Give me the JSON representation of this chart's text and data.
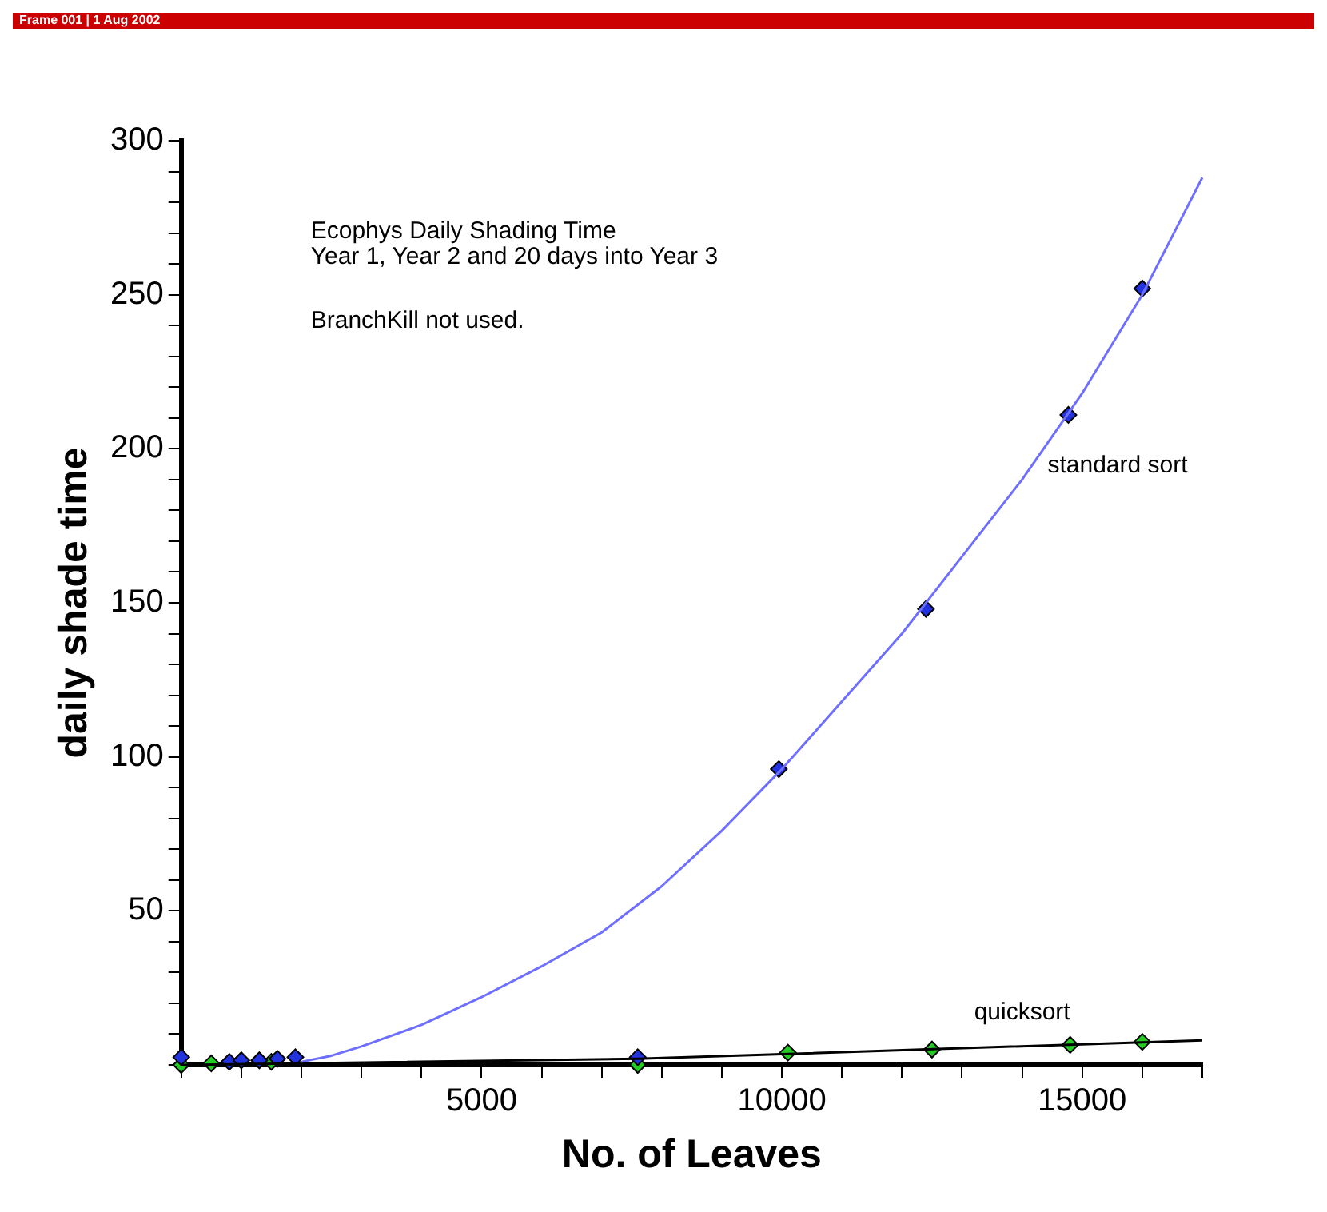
{
  "chart_data": {
    "type": "scatter",
    "title": "Ecophys Daily Shading Time",
    "subtitle": "Frame 001 | 1 Aug 2002",
    "xlabel": "No. of Leaves",
    "ylabel": "daily shade time",
    "annotations": [
      "Year 1, Year 2 and 20 days into Year 3",
      "BranchKill not used."
    ],
    "series": [
      {
        "type": "line",
        "color": "#6f6fff",
        "marker": "none",
        "x": [
          2000,
          2500,
          3000,
          4000,
          5000,
          6000,
          7000,
          8000,
          9000,
          10000,
          11000,
          12000,
          13000,
          14000,
          15000,
          16000,
          17000
        ],
        "values": [
          1,
          3,
          6,
          13,
          22,
          32,
          43,
          58,
          76,
          96,
          118,
          140,
          165,
          190,
          218,
          250,
          288
        ]
      },
      {
        "type": "line",
        "color": "#000000",
        "marker": "none",
        "x": [
          0,
          7600,
          10000,
          17000
        ],
        "values": [
          0,
          2,
          3.5,
          8
        ]
      },
      {
        "type": "scatter",
        "name": "standard sort",
        "color": "#2233dd",
        "marker": "diamond",
        "x": [
          0,
          500,
          800,
          1000,
          1300,
          1600,
          1900,
          7600,
          9950,
          12400,
          14770,
          16000
        ],
        "values": [
          2.5,
          null,
          1,
          1.5,
          1.5,
          2,
          2.5,
          2.5,
          96,
          148,
          211,
          252
        ]
      },
      {
        "type": "scatter",
        "name": "quicksort",
        "color": "#22cc22",
        "marker": "diamond",
        "x": [
          0,
          500,
          1000,
          1500,
          1900,
          7600,
          10100,
          12500,
          14800,
          16000
        ],
        "values": [
          0,
          0.5,
          null,
          1,
          null,
          0,
          4,
          5,
          6.5,
          7.5
        ]
      }
    ],
    "xlim": [
      0,
      17000
    ],
    "xticks": [
      {
        "value": 0,
        "label": null
      },
      {
        "value": 1000,
        "label": null
      },
      {
        "value": 2000,
        "label": null
      },
      {
        "value": 3000,
        "label": null
      },
      {
        "value": 4000,
        "label": null
      },
      5000,
      {
        "value": 6000,
        "label": null
      },
      {
        "value": 7000,
        "label": null
      },
      {
        "value": 8000,
        "label": null
      },
      {
        "value": 9000,
        "label": null
      },
      10000,
      {
        "value": 11000,
        "label": null
      },
      {
        "value": 12000,
        "label": null
      },
      {
        "value": 13000,
        "label": null
      },
      {
        "value": 14000,
        "label": null
      },
      15000,
      {
        "value": 16000,
        "label": null
      },
      {
        "value": 17000,
        "label": null
      }
    ],
    "ylim": [
      0,
      300
    ],
    "yticks": [
      {
        "value": 0,
        "label": null
      },
      {
        "value": 10,
        "label": null
      },
      {
        "value": 20,
        "label": null
      },
      {
        "value": 30,
        "label": null
      },
      {
        "value": 40,
        "label": null
      },
      50,
      {
        "value": 60,
        "label": null
      },
      {
        "value": 70,
        "label": null
      },
      {
        "value": 80,
        "label": null
      },
      {
        "value": 90,
        "label": null
      },
      100,
      {
        "value": 110,
        "label": null
      },
      {
        "value": 120,
        "label": null
      },
      {
        "value": 130,
        "label": null
      },
      {
        "value": 140,
        "label": null
      },
      150,
      {
        "value": 160,
        "label": null
      },
      {
        "value": 170,
        "label": null
      },
      {
        "value": 180,
        "label": null
      },
      {
        "value": 190,
        "label": null
      },
      200,
      {
        "value": 210,
        "label": null
      },
      {
        "value": 220,
        "label": null
      },
      {
        "value": 230,
        "label": null
      },
      {
        "value": 240,
        "label": null
      },
      250,
      {
        "value": 260,
        "label": null
      },
      {
        "value": 270,
        "label": null
      },
      {
        "value": 280,
        "label": null
      },
      {
        "value": 290,
        "label": null
      },
      300
    ],
    "grid": false,
    "legend": false,
    "line_style": "solid"
  }
}
